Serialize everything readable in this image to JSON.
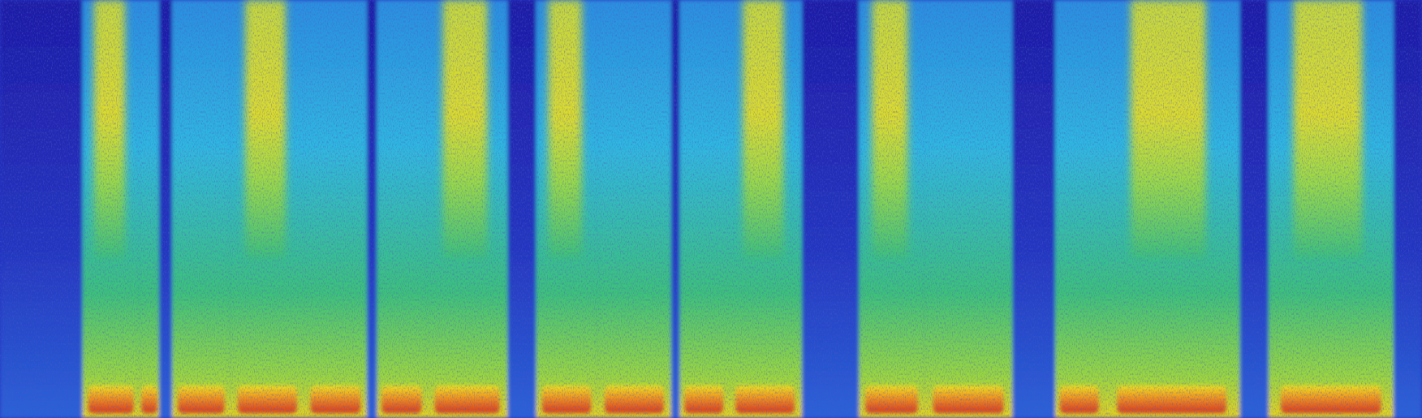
{
  "image": {
    "kind": "spectrogram",
    "colormap": "jet",
    "frequency_axis": "low-at-bottom",
    "axes_shown": false,
    "text_shown": false
  },
  "colors": {
    "background": "#2a1a8c",
    "deep_blue": "#1c1aa8",
    "blue": "#1f5ce6",
    "light_blue": "#2aa6e8",
    "cyan": "#1fc8d8",
    "green": "#2ec86b",
    "yellow_green": "#b8e63a",
    "yellow": "#f2e41c",
    "orange": "#f08a1e",
    "red": "#d8361a"
  },
  "segments": [
    {
      "kind": "silence",
      "start": 0.0,
      "end": 0.058
    },
    {
      "kind": "voiced",
      "start": 0.058,
      "end": 0.098
    },
    {
      "kind": "voiced",
      "start": 0.098,
      "end": 0.112
    },
    {
      "kind": "silence",
      "start": 0.112,
      "end": 0.121
    },
    {
      "kind": "voiced",
      "start": 0.121,
      "end": 0.162
    },
    {
      "kind": "voiced",
      "start": 0.162,
      "end": 0.214
    },
    {
      "kind": "voiced",
      "start": 0.214,
      "end": 0.258
    },
    {
      "kind": "silence",
      "start": 0.258,
      "end": 0.265
    },
    {
      "kind": "voiced",
      "start": 0.265,
      "end": 0.3
    },
    {
      "kind": "voiced",
      "start": 0.3,
      "end": 0.357
    },
    {
      "kind": "silence",
      "start": 0.357,
      "end": 0.377
    },
    {
      "kind": "voiced",
      "start": 0.377,
      "end": 0.42
    },
    {
      "kind": "voiced",
      "start": 0.42,
      "end": 0.472
    },
    {
      "kind": "silence",
      "start": 0.472,
      "end": 0.478
    },
    {
      "kind": "voiced",
      "start": 0.478,
      "end": 0.512
    },
    {
      "kind": "voiced",
      "start": 0.512,
      "end": 0.564
    },
    {
      "kind": "silence",
      "start": 0.564,
      "end": 0.604
    },
    {
      "kind": "voiced",
      "start": 0.604,
      "end": 0.65
    },
    {
      "kind": "voiced",
      "start": 0.65,
      "end": 0.712
    },
    {
      "kind": "silence",
      "start": 0.712,
      "end": 0.742
    },
    {
      "kind": "voiced",
      "start": 0.742,
      "end": 0.776
    },
    {
      "kind": "voiced",
      "start": 0.776,
      "end": 0.872
    },
    {
      "kind": "silence",
      "start": 0.872,
      "end": 0.892
    },
    {
      "kind": "voiced",
      "start": 0.892,
      "end": 0.98
    },
    {
      "kind": "silence",
      "start": 0.98,
      "end": 1.0
    }
  ]
}
